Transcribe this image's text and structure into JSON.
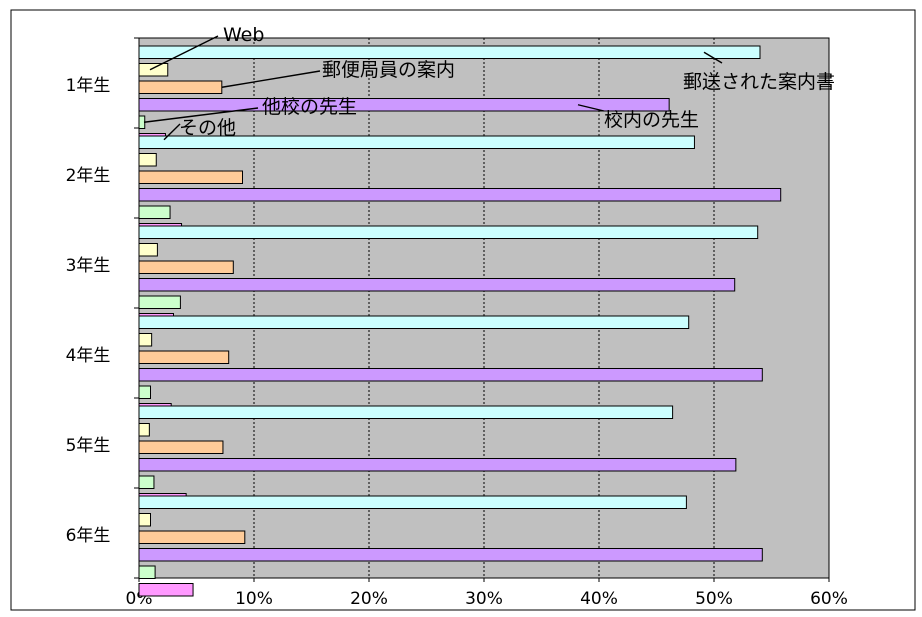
{
  "chart_data": {
    "type": "bar",
    "orientation": "horizontal",
    "categories": [
      "1年生",
      "2年生",
      "3年生",
      "4年生",
      "5年生",
      "6年生"
    ],
    "series": [
      {
        "name": "郵送された案内書",
        "color": "#CCFFFF",
        "values": [
          54.0,
          48.3,
          53.8,
          47.8,
          46.4,
          47.6
        ]
      },
      {
        "name": "Web",
        "color": "#FFFFCC",
        "values": [
          2.5,
          1.5,
          1.6,
          1.1,
          0.9,
          1.0
        ]
      },
      {
        "name": "郵便局員の案内",
        "color": "#FFCC99",
        "values": [
          7.2,
          9.0,
          8.2,
          7.8,
          7.3,
          9.2
        ]
      },
      {
        "name": "校内の先生",
        "color": "#CC99FF",
        "values": [
          46.1,
          55.8,
          51.8,
          54.2,
          51.9,
          54.2
        ]
      },
      {
        "name": "他校の先生",
        "color": "#CCFFCC",
        "values": [
          0.5,
          2.7,
          3.6,
          1.0,
          1.3,
          1.4
        ]
      },
      {
        "name": "その他",
        "color": "#FF99FF",
        "values": [
          2.3,
          3.7,
          3.0,
          2.8,
          4.1,
          4.7
        ]
      }
    ],
    "xlim": [
      0,
      60
    ],
    "xticks": [
      "0%",
      "10%",
      "20%",
      "30%",
      "40%",
      "50%",
      "60%"
    ],
    "grid": true,
    "plot_background": "#C0C0C0",
    "legend": "callout labels on 1年生 group"
  }
}
